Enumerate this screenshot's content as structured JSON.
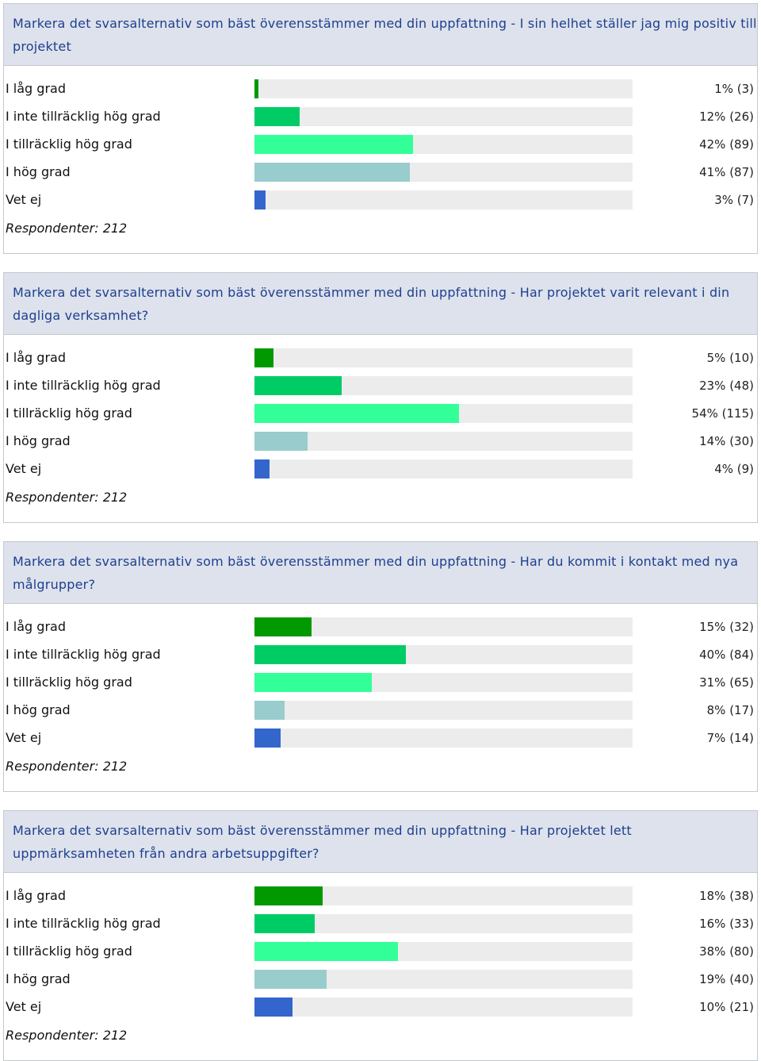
{
  "chart_data": [
    {
      "type": "bar",
      "title": "Markera det svarsalternativ som bäst överensstämmer med din uppfattning - I sin helhet ställer jag mig positiv till projektet",
      "categories": [
        "I låg grad",
        "I inte tillräcklig hög grad",
        "I tillräcklig hög grad",
        "I hög grad",
        "Vet ej"
      ],
      "values": [
        1,
        12,
        42,
        41,
        3
      ],
      "value_labels": [
        "1% (3)",
        "12% (26)",
        "42% (89)",
        "41% (87)",
        "3% (7)"
      ],
      "colors": [
        "#009900",
        "#00cc66",
        "#33ff99",
        "#99cccc",
        "#3366cc"
      ],
      "xlim": [
        0,
        100
      ],
      "footer": "Respondenter: 212"
    },
    {
      "type": "bar",
      "title": "Markera det svarsalternativ som bäst överensstämmer med din uppfattning - Har projektet varit relevant i din dagliga verksamhet?",
      "categories": [
        "I låg grad",
        "I inte tillräcklig hög grad",
        "I tillräcklig hög grad",
        "I hög grad",
        "Vet ej"
      ],
      "values": [
        5,
        23,
        54,
        14,
        4
      ],
      "value_labels": [
        "5% (10)",
        "23% (48)",
        "54% (115)",
        "14% (30)",
        "4% (9)"
      ],
      "colors": [
        "#009900",
        "#00cc66",
        "#33ff99",
        "#99cccc",
        "#3366cc"
      ],
      "xlim": [
        0,
        100
      ],
      "footer": "Respondenter: 212"
    },
    {
      "type": "bar",
      "title": "Markera det svarsalternativ som bäst överensstämmer med din uppfattning - Har du kommit i kontakt med nya målgrupper?",
      "categories": [
        "I låg grad",
        "I inte tillräcklig hög grad",
        "I tillräcklig hög grad",
        "I hög grad",
        "Vet ej"
      ],
      "values": [
        15,
        40,
        31,
        8,
        7
      ],
      "value_labels": [
        "15% (32)",
        "40% (84)",
        "31% (65)",
        "8% (17)",
        "7% (14)"
      ],
      "colors": [
        "#009900",
        "#00cc66",
        "#33ff99",
        "#99cccc",
        "#3366cc"
      ],
      "xlim": [
        0,
        100
      ],
      "footer": "Respondenter: 212"
    },
    {
      "type": "bar",
      "title": "Markera det svarsalternativ som bäst överensstämmer med din uppfattning - Har projektet lett uppmärksamheten från andra arbetsuppgifter?",
      "categories": [
        "I låg grad",
        "I inte tillräcklig hög grad",
        "I tillräcklig hög grad",
        "I hög grad",
        "Vet ej"
      ],
      "values": [
        18,
        16,
        38,
        19,
        10
      ],
      "value_labels": [
        "18% (38)",
        "16% (33)",
        "38% (80)",
        "19% (40)",
        "10% (21)"
      ],
      "colors": [
        "#009900",
        "#00cc66",
        "#33ff99",
        "#99cccc",
        "#3366cc"
      ],
      "xlim": [
        0,
        100
      ],
      "footer": "Respondenter: 212"
    }
  ]
}
